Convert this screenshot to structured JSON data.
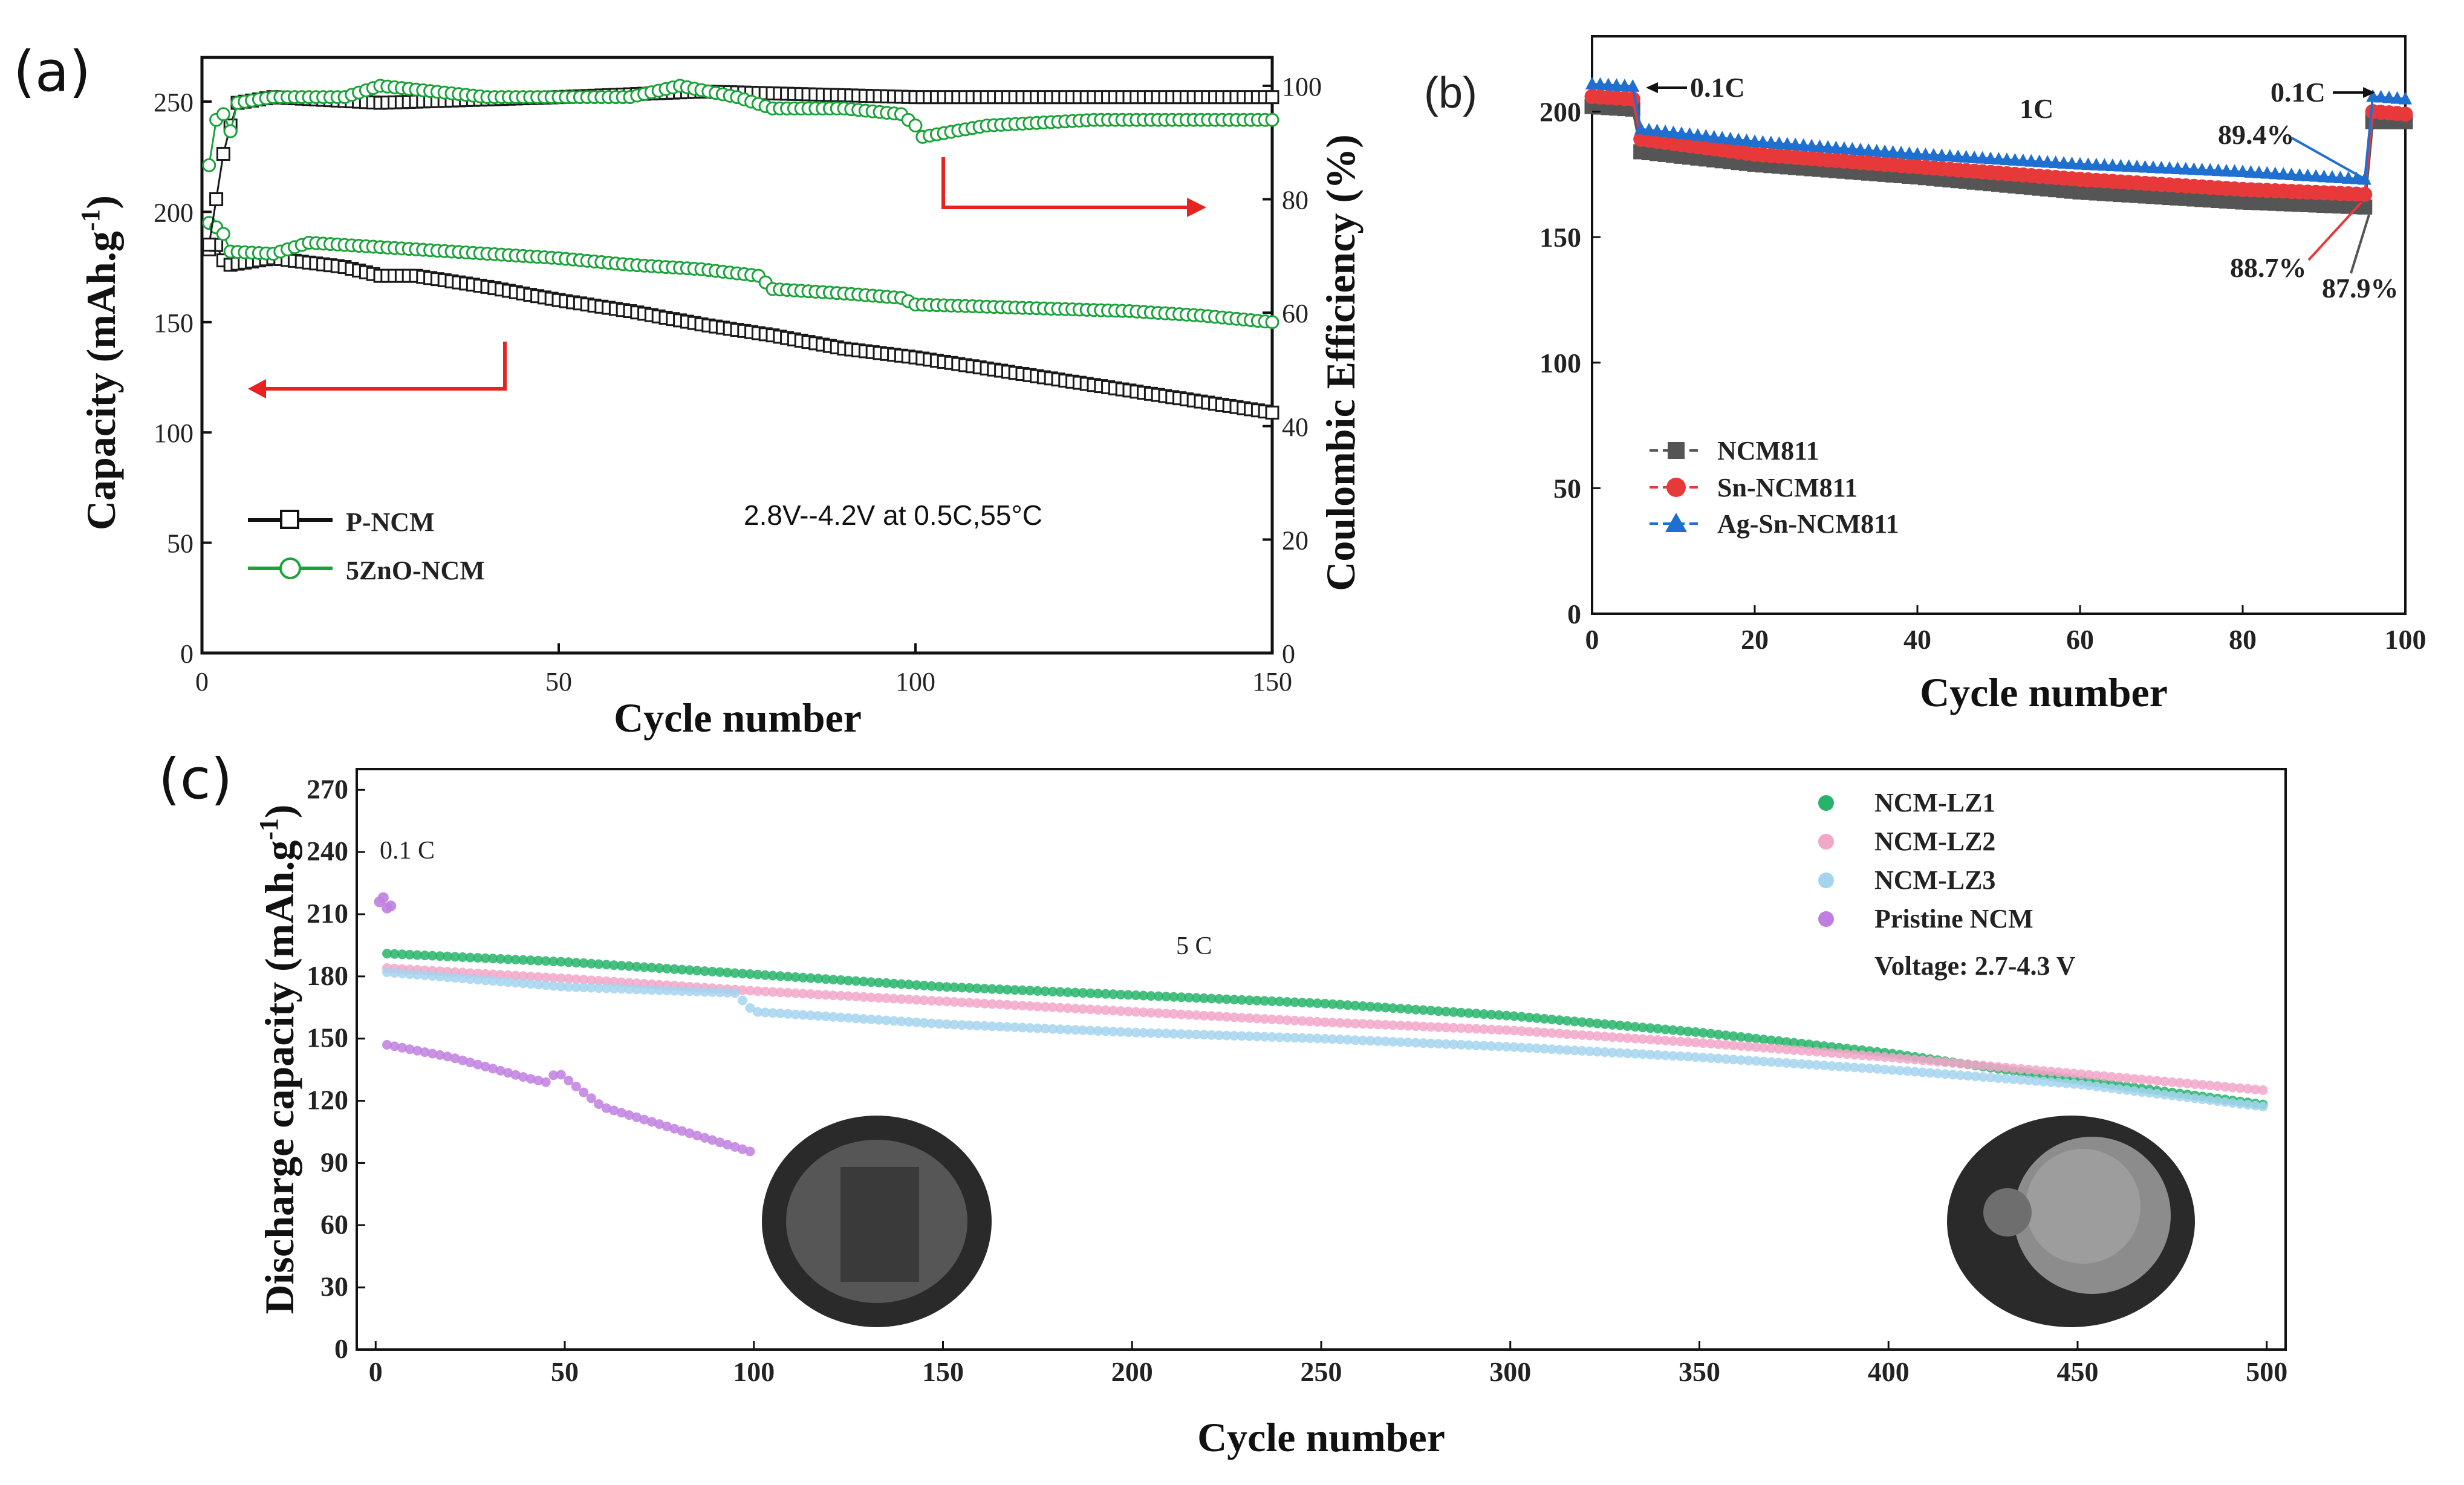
{
  "chart_data": [
    {
      "id": "a",
      "type": "scatter",
      "panel_label": "(a)",
      "xlabel": "Cycle number",
      "ylabel": "Capacity (mAh.g",
      "ylabel_sup": "-1",
      "ylabel_close": ")",
      "y2label": "Coulombic Efficiency (%)",
      "xlim": [
        0,
        150
      ],
      "ylim": [
        0,
        270
      ],
      "y2lim": [
        0,
        105
      ],
      "xticks": [
        0,
        50,
        100,
        150
      ],
      "yticks": [
        0,
        50,
        100,
        150,
        200,
        250
      ],
      "y2ticks": [
        0,
        20,
        40,
        60,
        80,
        100
      ],
      "annotation": "2.8V--4.2V at 0.5C,55°C",
      "series": [
        {
          "name": "P-NCM",
          "marker": "square",
          "color": "#1a1a1a",
          "axis": "capacity",
          "x": [
            1,
            2,
            3,
            4,
            10,
            20,
            25,
            30,
            40,
            50,
            60,
            70,
            80,
            90,
            100,
            110,
            120,
            130,
            140,
            150
          ],
          "y": [
            183,
            185,
            178,
            176,
            179,
            175,
            171,
            171,
            166,
            160,
            155,
            149,
            144,
            138,
            134,
            129,
            124,
            119,
            114,
            109
          ]
        },
        {
          "name": "5ZnO-NCM",
          "marker": "circle",
          "color": "#1aa33a",
          "axis": "capacity",
          "x": [
            1,
            2,
            3,
            4,
            10,
            15,
            20,
            30,
            40,
            50,
            60,
            70,
            78,
            80,
            90,
            98,
            100,
            110,
            120,
            130,
            140,
            150
          ],
          "y": [
            195,
            193,
            190,
            182,
            181,
            186,
            185,
            183,
            181,
            179,
            176,
            174,
            171,
            165,
            163,
            161,
            158,
            157,
            156,
            155,
            153,
            150
          ]
        },
        {
          "name": "P-NCM CE",
          "marker": "square",
          "color": "#1a1a1a",
          "axis": "efficiency",
          "x": [
            1,
            2,
            3,
            4,
            5,
            10,
            25,
            50,
            70,
            100,
            125,
            150
          ],
          "y": [
            72,
            80,
            88,
            93,
            97,
            98,
            97,
            98,
            99,
            98,
            98,
            98
          ]
        },
        {
          "name": "5ZnO-NCM CE",
          "marker": "circle",
          "color": "#1aa33a",
          "axis": "efficiency",
          "x": [
            1,
            2,
            3,
            4,
            5,
            10,
            20,
            25,
            40,
            60,
            67,
            75,
            80,
            90,
            98,
            100,
            101,
            110,
            125,
            140,
            150
          ],
          "y": [
            86,
            94,
            95,
            92,
            97,
            98,
            98,
            100,
            98,
            98,
            100,
            98,
            96,
            96,
            95,
            93,
            91,
            93,
            94,
            94,
            94
          ]
        }
      ]
    },
    {
      "id": "b",
      "type": "line",
      "panel_label": "(b)",
      "xlabel": "Cycle number",
      "ylabel": "",
      "xlim": [
        0,
        100
      ],
      "ylim": [
        0,
        230
      ],
      "xticks": [
        0,
        20,
        40,
        60,
        80,
        100
      ],
      "yticks": [
        0,
        50,
        100,
        150,
        200
      ],
      "rate_labels": [
        "0.1C",
        "1C",
        "0.1C"
      ],
      "retention_labels": [
        {
          "text": "89.4%",
          "color": "#1e6fd0"
        },
        {
          "text": "88.7%",
          "color": "#e8393a"
        },
        {
          "text": "87.9%",
          "color": "#555555"
        }
      ],
      "series": [
        {
          "name": "NCM811",
          "marker": "square",
          "color": "#555555",
          "x": [
            0,
            5,
            6,
            20,
            40,
            60,
            80,
            95,
            96,
            100
          ],
          "y": [
            202,
            201,
            184,
            179,
            174,
            168,
            164,
            162,
            196,
            196
          ]
        },
        {
          "name": "Sn-NCM811",
          "marker": "circle",
          "color": "#e8393a",
          "x": [
            0,
            5,
            6,
            20,
            40,
            60,
            80,
            95,
            96,
            100
          ],
          "y": [
            206,
            205,
            189,
            183,
            178,
            173,
            169,
            167,
            200,
            199
          ]
        },
        {
          "name": "Ag-Sn-NCM811",
          "marker": "triangle",
          "color": "#1e6fd0",
          "x": [
            0,
            5,
            6,
            20,
            40,
            60,
            80,
            95,
            96,
            100
          ],
          "y": [
            211,
            210,
            193,
            188,
            183,
            179,
            176,
            173,
            206,
            205
          ]
        }
      ]
    },
    {
      "id": "c",
      "type": "scatter",
      "panel_label": "(c)",
      "xlabel": "Cycle number",
      "ylabel": "Discharge capacity (mAh.g",
      "ylabel_sup": "-1",
      "ylabel_close": ")",
      "xlim": [
        -5,
        505
      ],
      "ylim": [
        0,
        280
      ],
      "xticks": [
        0,
        50,
        100,
        150,
        200,
        250,
        300,
        350,
        400,
        450,
        500
      ],
      "yticks": [
        0,
        30,
        60,
        90,
        120,
        150,
        180,
        210,
        240,
        270
      ],
      "rate_labels": [
        "0.1 C",
        "5 C"
      ],
      "voltage": "Voltage: 2.7-4.3 V",
      "series": [
        {
          "name": "NCM-LZ1",
          "color": "#27b46a",
          "x": [
            3,
            50,
            100,
            150,
            200,
            250,
            300,
            350,
            400,
            450,
            500
          ],
          "y": [
            191,
            187,
            181,
            175,
            171,
            167,
            161,
            153,
            143,
            130,
            118
          ]
        },
        {
          "name": "NCM-LZ2",
          "color": "#f2a6c8",
          "x": [
            3,
            50,
            100,
            150,
            200,
            250,
            300,
            350,
            400,
            450,
            500
          ],
          "y": [
            184,
            179,
            173,
            168,
            163,
            158,
            154,
            148,
            141,
            133,
            125
          ]
        },
        {
          "name": "NCM-LZ3",
          "color": "#a4d4ee",
          "x": [
            3,
            50,
            95,
            100,
            150,
            200,
            250,
            300,
            350,
            400,
            450,
            500
          ],
          "y": [
            182,
            175,
            172,
            163,
            157,
            153,
            150,
            146,
            141,
            135,
            128,
            117
          ]
        },
        {
          "name": "Pristine NCM",
          "color": "#c07fe0",
          "x": [
            3,
            20,
            40,
            45,
            48,
            60,
            80,
            100
          ],
          "y": [
            147,
            141,
            131,
            129,
            134,
            117,
            106,
            95
          ]
        }
      ],
      "initial_points": {
        "x": [
          1,
          2,
          3,
          4
        ],
        "y": [
          216,
          218,
          213,
          214
        ]
      }
    }
  ]
}
